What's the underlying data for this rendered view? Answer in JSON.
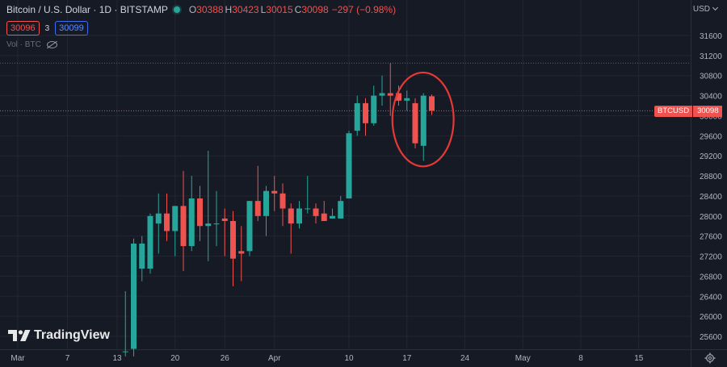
{
  "header": {
    "title": "Bitcoin / U.S. Dollar · 1D · BITSTAMP",
    "ohlc": [
      {
        "key": "O",
        "value": "30388"
      },
      {
        "key": "H",
        "value": "30423"
      },
      {
        "key": "L",
        "value": "30015"
      },
      {
        "key": "C",
        "value": "30098"
      }
    ],
    "change": "−297 (−0.98%)",
    "bid": "30096",
    "spread": "3",
    "ask": "30099",
    "volume_label": "Vol · BTC",
    "currency": "USD"
  },
  "last_price_tag": {
    "symbol": "BTCUSD",
    "value": "30098"
  },
  "logo_text": "TradingView",
  "colors": {
    "up": "#26a69a",
    "down": "#ef5350",
    "background": "#161a25",
    "grid": "#232632",
    "annotation": "#e53935"
  },
  "chart_data": {
    "type": "candlestick",
    "title": "Bitcoin / U.S. Dollar · 1D · BITSTAMP",
    "y_ticks": [
      25600,
      26000,
      26400,
      26800,
      27200,
      27600,
      28000,
      28400,
      28800,
      29200,
      29600,
      30000,
      30400,
      30800,
      31200,
      31600
    ],
    "ylim": [
      25300,
      31850
    ],
    "x_ticks": [
      {
        "label": "Mar",
        "day": 0
      },
      {
        "label": "7",
        "day": 6
      },
      {
        "label": "13",
        "day": 12
      },
      {
        "label": "20",
        "day": 19
      },
      {
        "label": "26",
        "day": 25
      },
      {
        "label": "Apr",
        "day": 31
      },
      {
        "label": "10",
        "day": 40
      },
      {
        "label": "17",
        "day": 47
      },
      {
        "label": "24",
        "day": 54
      },
      {
        "label": "May",
        "day": 61
      },
      {
        "label": "8",
        "day": 68
      },
      {
        "label": "15",
        "day": 75
      }
    ],
    "x_range_days": [
      -1,
      76
    ],
    "horizontal_line": 31050,
    "last_price": 30098,
    "candles": [
      {
        "day": 13,
        "o": 25300,
        "h": 26500,
        "l": 25200,
        "c": 25300
      },
      {
        "day": 14,
        "o": 25350,
        "h": 27550,
        "l": 25200,
        "c": 27450
      },
      {
        "day": 15,
        "o": 26950,
        "h": 27600,
        "l": 26700,
        "c": 27450
      },
      {
        "day": 16,
        "o": 26950,
        "h": 28050,
        "l": 26850,
        "c": 28000
      },
      {
        "day": 17,
        "o": 27850,
        "h": 28450,
        "l": 27250,
        "c": 28050
      },
      {
        "day": 18,
        "o": 28050,
        "h": 28450,
        "l": 27500,
        "c": 27700
      },
      {
        "day": 19,
        "o": 27700,
        "h": 28200,
        "l": 27200,
        "c": 28200
      },
      {
        "day": 20,
        "o": 28200,
        "h": 28900,
        "l": 26900,
        "c": 27400
      },
      {
        "day": 21,
        "o": 27400,
        "h": 28800,
        "l": 27300,
        "c": 28350
      },
      {
        "day": 22,
        "o": 28350,
        "h": 28600,
        "l": 27500,
        "c": 27800
      },
      {
        "day": 23,
        "o": 27800,
        "h": 29300,
        "l": 27100,
        "c": 27850
      },
      {
        "day": 24,
        "o": 27850,
        "h": 28500,
        "l": 27400,
        "c": 27850
      },
      {
        "day": 25,
        "o": 27950,
        "h": 28150,
        "l": 27200,
        "c": 27900
      },
      {
        "day": 26,
        "o": 27900,
        "h": 28100,
        "l": 26600,
        "c": 27150
      },
      {
        "day": 27,
        "o": 27300,
        "h": 27800,
        "l": 26700,
        "c": 27250
      },
      {
        "day": 28,
        "o": 27300,
        "h": 28300,
        "l": 27200,
        "c": 28300
      },
      {
        "day": 29,
        "o": 28300,
        "h": 29000,
        "l": 27900,
        "c": 28000
      },
      {
        "day": 30,
        "o": 28000,
        "h": 28600,
        "l": 27600,
        "c": 28500
      },
      {
        "day": 31,
        "o": 28500,
        "h": 28800,
        "l": 28100,
        "c": 28450
      },
      {
        "day": 32,
        "o": 28450,
        "h": 28650,
        "l": 27800,
        "c": 28150
      },
      {
        "day": 33,
        "o": 28150,
        "h": 28250,
        "l": 27250,
        "c": 27850
      },
      {
        "day": 34,
        "o": 27850,
        "h": 28300,
        "l": 27750,
        "c": 28150
      },
      {
        "day": 35,
        "o": 28150,
        "h": 28800,
        "l": 28050,
        "c": 28150
      },
      {
        "day": 36,
        "o": 28150,
        "h": 28250,
        "l": 27850,
        "c": 28000
      },
      {
        "day": 37,
        "o": 28050,
        "h": 28300,
        "l": 27900,
        "c": 27900
      },
      {
        "day": 38,
        "o": 27950,
        "h": 28150,
        "l": 27950,
        "c": 28000
      },
      {
        "day": 39,
        "o": 27950,
        "h": 28400,
        "l": 27950,
        "c": 28300
      },
      {
        "day": 40,
        "o": 28350,
        "h": 29700,
        "l": 28350,
        "c": 29650
      },
      {
        "day": 41,
        "o": 29700,
        "h": 30400,
        "l": 29600,
        "c": 30250
      },
      {
        "day": 42,
        "o": 30250,
        "h": 30350,
        "l": 29600,
        "c": 29850
      },
      {
        "day": 43,
        "o": 29850,
        "h": 30600,
        "l": 29800,
        "c": 30400
      },
      {
        "day": 44,
        "o": 30400,
        "h": 30800,
        "l": 30200,
        "c": 30450
      },
      {
        "day": 45,
        "o": 30450,
        "h": 31050,
        "l": 30000,
        "c": 30400
      },
      {
        "day": 46,
        "o": 30450,
        "h": 30600,
        "l": 30200,
        "c": 30300
      },
      {
        "day": 47,
        "o": 30300,
        "h": 30500,
        "l": 30100,
        "c": 30350
      },
      {
        "day": 48,
        "o": 30250,
        "h": 30350,
        "l": 29350,
        "c": 29450
      },
      {
        "day": 49,
        "o": 29400,
        "h": 30450,
        "l": 29100,
        "c": 30400
      },
      {
        "day": 50,
        "o": 30388,
        "h": 30423,
        "l": 30015,
        "c": 30098
      }
    ],
    "annotation": {
      "type": "ellipse",
      "color": "#e53935",
      "day_range": [
        47,
        50.5
      ],
      "price_range": [
        29150,
        30700
      ]
    }
  }
}
